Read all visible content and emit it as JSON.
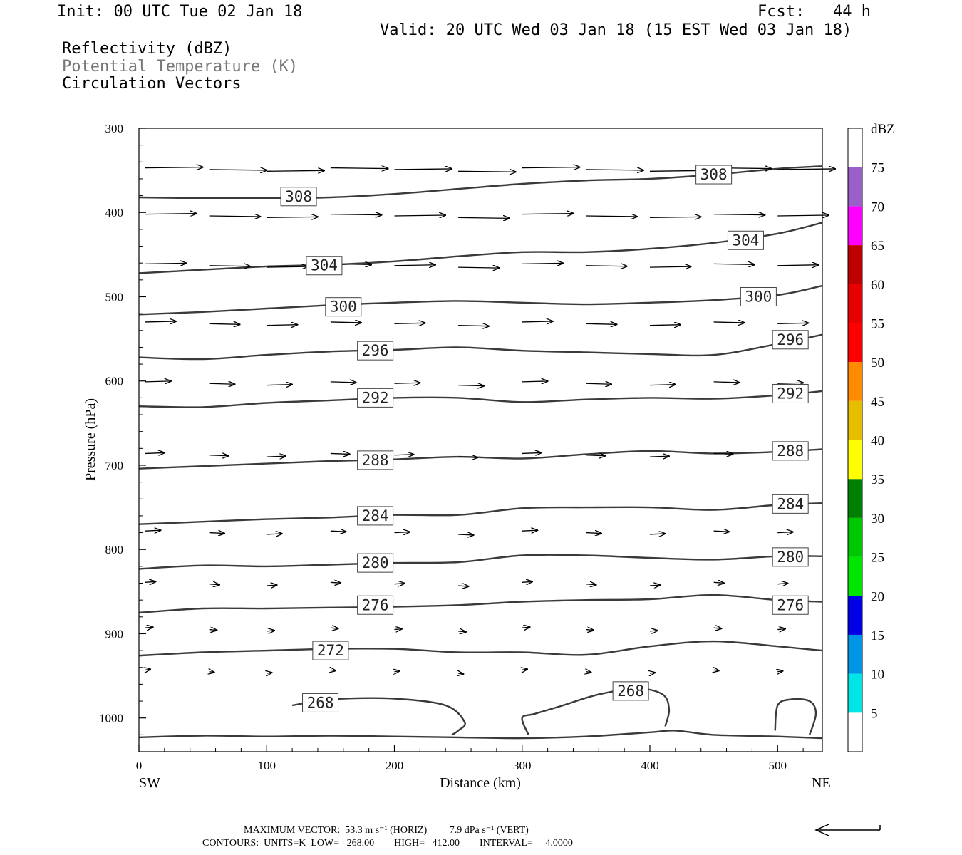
{
  "header": {
    "init": "Init: 00 UTC Tue 02 Jan 18",
    "fcst": "Fcst:   44 h",
    "valid": "Valid: 20 UTC Wed 03 Jan 18 (15 EST Wed 03 Jan 18)",
    "field1": "Reflectivity (dBZ)",
    "field2": "Potential Temperature (K)",
    "field3": "Circulation Vectors"
  },
  "footer": {
    "line1": "MAXIMUM VECTOR:  53.3 m s⁻¹ (HORIZ)         7.9 dPa s⁻¹ (VERT)",
    "line2": "CONTOURS:  UNITS=K  LOW=   268.00        HIGH=   412.00        INTERVAL=     4.0000"
  },
  "colorbar": {
    "unit": "dBZ",
    "levels": [
      "5",
      "10",
      "15",
      "20",
      "25",
      "30",
      "35",
      "40",
      "45",
      "50",
      "55",
      "60",
      "65",
      "70",
      "75"
    ],
    "colors": [
      "#ffffff",
      "#00e6e6",
      "#0096e6",
      "#0000e6",
      "#00e600",
      "#00c800",
      "#008000",
      "#ffff00",
      "#e6be00",
      "#ff8c00",
      "#ff0000",
      "#e60000",
      "#be0000",
      "#ff00ff",
      "#9a5fc8",
      "#ffffff"
    ]
  },
  "chart_data": {
    "type": "line",
    "title": "",
    "xlabel": "Distance (km)",
    "ylabel": "Pressure (hPa)",
    "xlim": [
      0,
      535
    ],
    "ylim": [
      300,
      1040
    ],
    "x_ticks": [
      "0",
      "100",
      "200",
      "300",
      "400",
      "500"
    ],
    "y_ticks": [
      "300",
      "400",
      "500",
      "600",
      "700",
      "800",
      "900",
      "1000"
    ],
    "x_end_labels": {
      "left": "SW",
      "right": "NE"
    },
    "series": [
      {
        "name": "308",
        "x": [
          0,
          50,
          100,
          150,
          200,
          250,
          300,
          350,
          400,
          450,
          500,
          535
        ],
        "y": [
          382,
          383,
          383,
          382,
          378,
          372,
          366,
          362,
          360,
          355,
          348,
          345
        ],
        "labels": [
          [
            125,
            381
          ],
          [
            450,
            355
          ]
        ]
      },
      {
        "name": "304",
        "x": [
          0,
          50,
          100,
          150,
          200,
          250,
          300,
          350,
          400,
          450,
          500,
          535
        ],
        "y": [
          472,
          468,
          464,
          462,
          458,
          452,
          447,
          447,
          443,
          436,
          425,
          412
        ],
        "labels": [
          [
            145,
            463
          ],
          [
            475,
            433
          ]
        ]
      },
      {
        "name": "300",
        "x": [
          0,
          50,
          100,
          150,
          200,
          250,
          300,
          350,
          400,
          450,
          500,
          535
        ],
        "y": [
          521,
          518,
          514,
          510,
          507,
          505,
          507,
          509,
          507,
          504,
          498,
          487
        ],
        "labels": [
          [
            160,
            512
          ],
          [
            485,
            500
          ]
        ]
      },
      {
        "name": "296",
        "x": [
          0,
          50,
          100,
          150,
          200,
          250,
          300,
          350,
          400,
          450,
          500,
          535
        ],
        "y": [
          572,
          574,
          569,
          565,
          563,
          560,
          564,
          566,
          568,
          569,
          556,
          545
        ],
        "labels": [
          [
            185,
            564
          ],
          [
            510,
            551
          ]
        ]
      },
      {
        "name": "292",
        "x": [
          0,
          50,
          100,
          150,
          200,
          250,
          300,
          350,
          400,
          450,
          500,
          535
        ],
        "y": [
          630,
          631,
          626,
          623,
          620,
          620,
          625,
          622,
          620,
          621,
          617,
          612
        ],
        "labels": [
          [
            185,
            620
          ],
          [
            510,
            615
          ]
        ]
      },
      {
        "name": "288",
        "x": [
          0,
          50,
          100,
          150,
          200,
          250,
          300,
          350,
          400,
          450,
          500,
          535
        ],
        "y": [
          704,
          701,
          698,
          695,
          693,
          690,
          692,
          687,
          683,
          686,
          684,
          681
        ],
        "labels": [
          [
            185,
            694
          ],
          [
            510,
            683
          ]
        ]
      },
      {
        "name": "284",
        "x": [
          0,
          50,
          100,
          150,
          200,
          250,
          300,
          350,
          400,
          450,
          500,
          535
        ],
        "y": [
          770,
          767,
          764,
          762,
          759,
          759,
          751,
          750,
          750,
          753,
          747,
          745
        ],
        "labels": [
          [
            185,
            760
          ],
          [
            510,
            746
          ]
        ]
      },
      {
        "name": "280",
        "x": [
          0,
          50,
          100,
          150,
          200,
          250,
          300,
          350,
          400,
          450,
          500,
          535
        ],
        "y": [
          823,
          819,
          820,
          818,
          816,
          815,
          807,
          807,
          810,
          812,
          808,
          808
        ],
        "labels": [
          [
            185,
            816
          ],
          [
            510,
            809
          ]
        ]
      },
      {
        "name": "276",
        "x": [
          0,
          50,
          100,
          150,
          200,
          250,
          300,
          350,
          400,
          450,
          500,
          535
        ],
        "y": [
          875,
          870,
          870,
          869,
          868,
          866,
          862,
          860,
          859,
          854,
          860,
          862
        ],
        "labels": [
          [
            185,
            866
          ],
          [
            510,
            866
          ]
        ]
      },
      {
        "name": "272",
        "x": [
          0,
          50,
          100,
          150,
          200,
          250,
          300,
          350,
          400,
          450,
          500,
          535
        ],
        "y": [
          926,
          922,
          920,
          918,
          918,
          922,
          922,
          925,
          915,
          909,
          915,
          920
        ],
        "labels": [
          [
            150,
            920
          ]
        ]
      },
      {
        "name": "268",
        "x": [
          120,
          140,
          160,
          200,
          240,
          255,
          250,
          245
        ],
        "y": [
          985,
          980,
          977,
          977,
          985,
          1005,
          1015,
          1020
        ],
        "labels": [
          [
            142,
            982
          ]
        ]
      },
      {
        "name": "268",
        "x": [
          305,
          300,
          310,
          330,
          360,
          390,
          410,
          415,
          412
        ],
        "y": [
          1020,
          1000,
          995,
          986,
          972,
          965,
          972,
          990,
          1010
        ],
        "labels": [
          [
            385,
            968
          ]
        ]
      },
      {
        "name": "268",
        "x": [
          498,
          500,
          510,
          525,
          530,
          525
        ],
        "y": [
          1015,
          985,
          978,
          980,
          995,
          1020
        ],
        "labels": []
      },
      {
        "name": "",
        "x": [
          0,
          50,
          100,
          150,
          200,
          250,
          300,
          350,
          400,
          420,
          450,
          500,
          535
        ],
        "y": [
          1023,
          1021,
          1022,
          1021,
          1022,
          1023,
          1024,
          1022,
          1017,
          1015,
          1020,
          1022,
          1024
        ],
        "labels": []
      }
    ],
    "vectors": {
      "note": "circulation vectors (u in km-axis units of arrow length, w in hPa units)",
      "rows": [
        {
          "p": 349,
          "u": 45,
          "w": 0
        },
        {
          "p": 404,
          "u": 40,
          "w": 0
        },
        {
          "p": 463,
          "u": 32,
          "w": 0
        },
        {
          "p": 532,
          "u": 24,
          "w": 0
        },
        {
          "p": 603,
          "u": 20,
          "w": 0
        },
        {
          "p": 688,
          "u": 15,
          "w": 0
        },
        {
          "p": 780,
          "u": 12,
          "w": 0
        },
        {
          "p": 841,
          "u": 8,
          "w": 0
        },
        {
          "p": 895,
          "u": 6,
          "w": 0
        },
        {
          "p": 945,
          "u": 4,
          "w": 0
        }
      ],
      "x_positions": [
        5,
        55,
        100,
        150,
        200,
        250,
        300,
        350,
        400,
        450,
        500
      ]
    }
  }
}
